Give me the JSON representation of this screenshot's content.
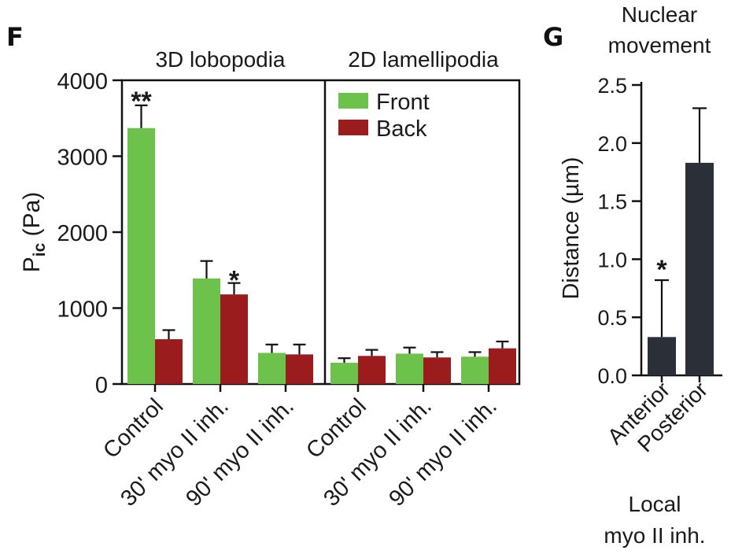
{
  "panel_f": {
    "letter": "F",
    "group_titles": [
      "3D lobopodia",
      "2D lamellipodia"
    ],
    "legend": [
      "Front",
      "Back"
    ],
    "ylabel_main": "P",
    "ylabel_sub": "ic",
    "ylabel_unit": " (Pa)"
  },
  "panel_g": {
    "letter": "G",
    "title_line1": "Nuclear",
    "title_line2": "movement",
    "ylabel": "Distance (µm)",
    "footer_line1": "Local",
    "footer_line2": "myo II inh."
  },
  "colors": {
    "front": "#6cc24a",
    "back": "#9b1c1c",
    "bar_g": "#2b2f38"
  },
  "chart_data": [
    {
      "type": "bar",
      "panel": "F",
      "title": "",
      "ylabel": "Pic (Pa)",
      "ylim": [
        0,
        4000
      ],
      "yticks": [
        0,
        1000,
        2000,
        3000,
        4000
      ],
      "groups": [
        "3D lobopodia",
        "2D lamellipodia"
      ],
      "categories": [
        "Control",
        "30' myo II inh.",
        "90' myo II inh.",
        "Control",
        "30' myo II inh.",
        "90' myo II inh."
      ],
      "series": [
        {
          "name": "Front",
          "values": [
            3370,
            1390,
            410,
            280,
            400,
            360
          ],
          "errors": [
            300,
            230,
            110,
            60,
            80,
            60
          ]
        },
        {
          "name": "Back",
          "values": [
            590,
            1180,
            390,
            370,
            350,
            470
          ],
          "errors": [
            120,
            150,
            130,
            80,
            70,
            90
          ]
        }
      ],
      "annotations": [
        {
          "category_index": 0,
          "series": "Front",
          "text": "**"
        },
        {
          "category_index": 1,
          "series": "Back",
          "text": "*"
        }
      ],
      "legend": "top-right"
    },
    {
      "type": "bar",
      "panel": "G",
      "title": "Nuclear movement",
      "ylabel": "Distance (µm)",
      "xlabel": "Local myo II inh.",
      "ylim": [
        0,
        2.5
      ],
      "yticks": [
        "0.0",
        "0.5",
        "1.0",
        "1.5",
        "2.0",
        "2.5"
      ],
      "categories": [
        "Anterior",
        "Posterior"
      ],
      "values": [
        0.33,
        1.83
      ],
      "errors": [
        0.49,
        0.47
      ],
      "annotations": [
        {
          "category_index": 0,
          "text": "*"
        }
      ]
    }
  ]
}
